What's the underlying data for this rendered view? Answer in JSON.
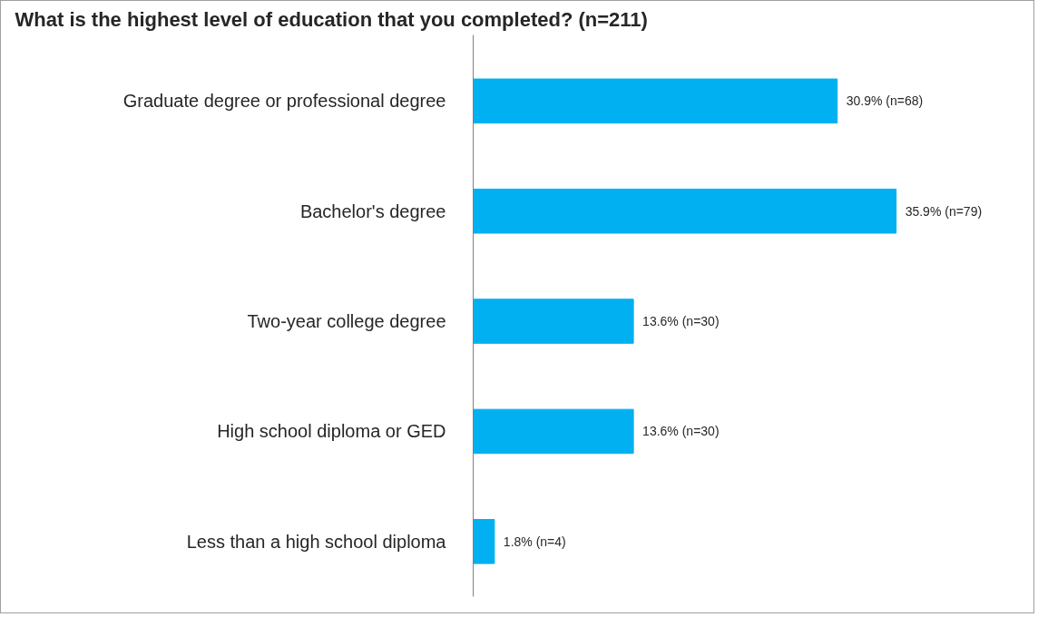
{
  "chart_data": {
    "type": "bar",
    "orientation": "horizontal",
    "title": "What is the highest level of education that you completed? (n=211)",
    "categories": [
      "Graduate degree or professional degree",
      "Bachelor's degree",
      "Two-year college degree",
      "High school diploma or GED",
      "Less than a high school diploma"
    ],
    "values": [
      30.9,
      35.9,
      13.6,
      13.6,
      1.8
    ],
    "value_labels": [
      "30.9% (n=68)",
      "35.9% (n=79)",
      "13.6% (n=30)",
      "13.6% (n=30)",
      "1.8% (n=4)"
    ],
    "color": "#00b0f0",
    "grid": false,
    "tick_labels": "y"
  }
}
